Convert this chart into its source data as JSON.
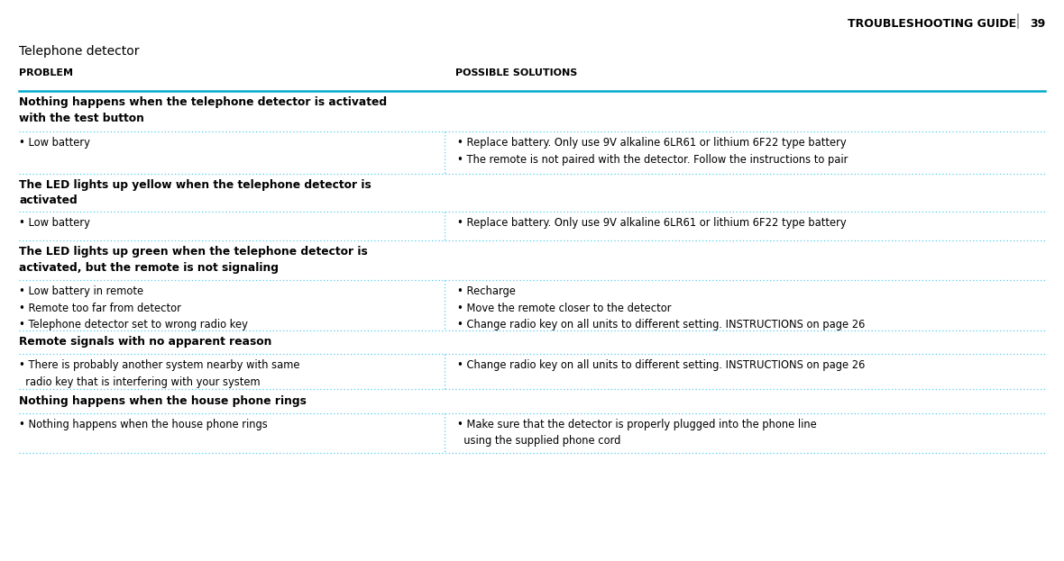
{
  "page_title": "Telephone detector",
  "header_left": "PROBLEM",
  "header_right": "POSSIBLE SOLUTIONS",
  "top_right_text": "TROUBLESHOOTING GUIDE",
  "page_number": "39",
  "col_split": 0.415,
  "bg_color": "#ffffff",
  "header_line_color": "#00aacc",
  "divider_color": "#55ccee",
  "text_color": "#000000",
  "rows": [
    {
      "type": "section_header",
      "left": "Nothing happens when the telephone detector is activated\nwith the test button"
    },
    {
      "type": "data",
      "left": "• Low battery",
      "right": "• Replace battery. Only use 9V alkaline 6LR61 or lithium 6F22 type battery\n• The remote is not paired with the detector. Follow the instructions to pair"
    },
    {
      "type": "section_header",
      "left": "The LED lights up yellow when the telephone detector is\nactivated"
    },
    {
      "type": "data",
      "left": "• Low battery",
      "right": "• Replace battery. Only use 9V alkaline 6LR61 or lithium 6F22 type battery"
    },
    {
      "type": "section_header",
      "left": "The LED lights up green when the telephone detector is\nactivated, but the remote is not signaling"
    },
    {
      "type": "data",
      "left": "• Low battery in remote\n• Remote too far from detector\n• Telephone detector set to wrong radio key",
      "right": "• Recharge\n• Move the remote closer to the detector\n• Change radio key on all units to different setting. INSTRUCTIONS on page 26"
    },
    {
      "type": "section_header",
      "left": "Remote signals with no apparent reason"
    },
    {
      "type": "data",
      "left": "• There is probably another system nearby with same\n  radio key that is interfering with your system",
      "right": "• Change radio key on all units to different setting. INSTRUCTIONS on page 26"
    },
    {
      "type": "section_header",
      "left": "Nothing happens when the house phone rings"
    },
    {
      "type": "data",
      "left": "• Nothing happens when the house phone rings",
      "right": "• Make sure that the detector is properly plugged into the phone line\n  using the supplied phone cord"
    }
  ]
}
